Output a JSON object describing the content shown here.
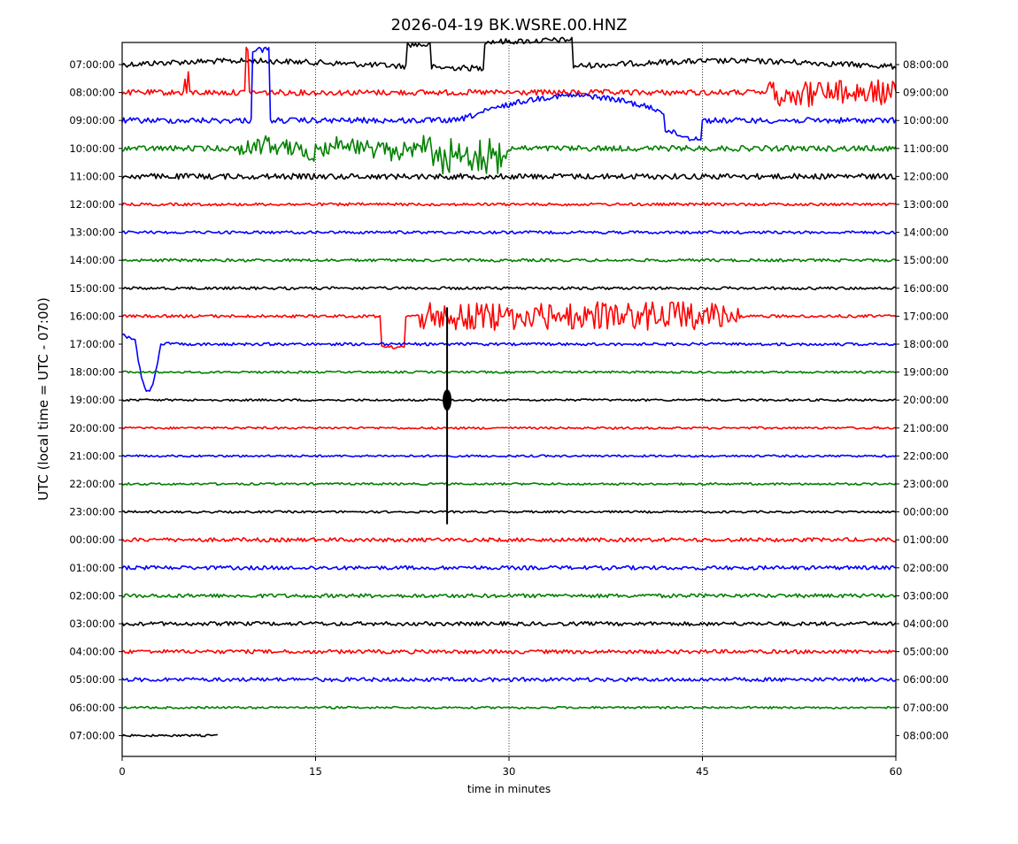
{
  "chart_data": {
    "type": "line",
    "title": "2026-04-19 BK.WSRE.00.HNZ",
    "xlabel": "time in minutes",
    "ylabel": "UTC (local time = UTC - 07:00)",
    "xlim": [
      0,
      60
    ],
    "x_ticks": [
      "0",
      "15",
      "30",
      "45",
      "60"
    ],
    "x_grid_minutes": [
      15,
      30,
      45
    ],
    "grid": "vertical dotted lines at 15, 30, 45",
    "legend": "none",
    "trace_colors": [
      "#000000",
      "#ff0000",
      "#0000ff",
      "#008000"
    ],
    "left_labels": [
      "07:00:00",
      "08:00:00",
      "09:00:00",
      "10:00:00",
      "11:00:00",
      "12:00:00",
      "13:00:00",
      "14:00:00",
      "15:00:00",
      "16:00:00",
      "17:00:00",
      "18:00:00",
      "19:00:00",
      "20:00:00",
      "21:00:00",
      "22:00:00",
      "23:00:00",
      "00:00:00",
      "01:00:00",
      "02:00:00",
      "03:00:00",
      "04:00:00",
      "05:00:00",
      "06:00:00",
      "07:00:00"
    ],
    "right_labels": [
      "08:00:00",
      "09:00:00",
      "10:00:00",
      "11:00:00",
      "12:00:00",
      "13:00:00",
      "14:00:00",
      "15:00:00",
      "16:00:00",
      "17:00:00",
      "18:00:00",
      "19:00:00",
      "20:00:00",
      "21:00:00",
      "22:00:00",
      "23:00:00",
      "00:00:00",
      "01:00:00",
      "02:00:00",
      "03:00:00",
      "04:00:00",
      "05:00:00",
      "06:00:00",
      "07:00:00",
      "08:00:00"
    ],
    "last_trace_end_minute": 7.4,
    "events": [
      {
        "row": 12,
        "minute": 25.2,
        "note": "large transient spike crossing rows 9–16"
      }
    ]
  }
}
